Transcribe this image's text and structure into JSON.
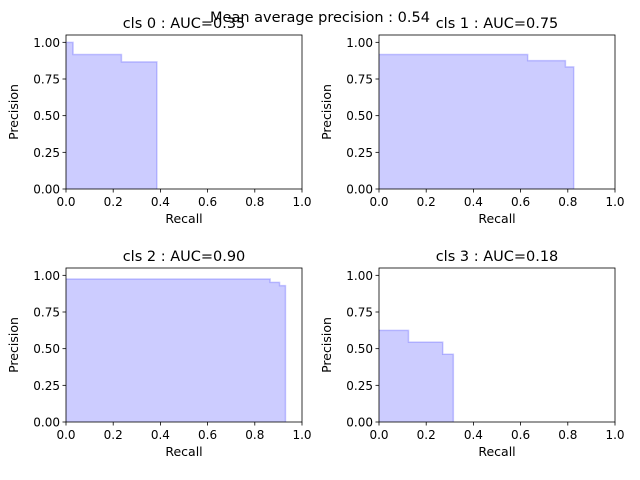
{
  "suptitle": "Mean average precision : 0.54",
  "chart_data": [
    {
      "type": "area",
      "title": "cls 0 : AUC=0.35",
      "xlabel": "Recall",
      "ylabel": "Precision",
      "xlim": [
        0,
        1
      ],
      "ylim": [
        0,
        1.05
      ],
      "xticks": [
        "0.0",
        "0.2",
        "0.4",
        "0.6",
        "0.8",
        "1.0"
      ],
      "yticks": [
        "0.00",
        "0.25",
        "0.50",
        "0.75",
        "1.00"
      ],
      "step_curve": [
        [
          0.0,
          1.0
        ],
        [
          0.03,
          1.0
        ],
        [
          0.03,
          0.917
        ],
        [
          0.235,
          0.917
        ],
        [
          0.235,
          0.867
        ],
        [
          0.385,
          0.867
        ],
        [
          0.385,
          0.0
        ]
      ]
    },
    {
      "type": "area",
      "title": "cls 1 : AUC=0.75",
      "xlabel": "Recall",
      "ylabel": "Precision",
      "xlim": [
        0,
        1
      ],
      "ylim": [
        0,
        1.05
      ],
      "xticks": [
        "0.0",
        "0.2",
        "0.4",
        "0.6",
        "0.8",
        "1.0"
      ],
      "yticks": [
        "0.00",
        "0.25",
        "0.50",
        "0.75",
        "1.00"
      ],
      "step_curve": [
        [
          0.0,
          0.917
        ],
        [
          0.63,
          0.917
        ],
        [
          0.63,
          0.875
        ],
        [
          0.79,
          0.875
        ],
        [
          0.79,
          0.833
        ],
        [
          0.825,
          0.833
        ],
        [
          0.825,
          0.0
        ]
      ]
    },
    {
      "type": "area",
      "title": "cls 2 : AUC=0.90",
      "xlabel": "Recall",
      "ylabel": "Precision",
      "xlim": [
        0,
        1
      ],
      "ylim": [
        0,
        1.05
      ],
      "xticks": [
        "0.0",
        "0.2",
        "0.4",
        "0.6",
        "0.8",
        "1.0"
      ],
      "yticks": [
        "0.00",
        "0.25",
        "0.50",
        "0.75",
        "1.00"
      ],
      "step_curve": [
        [
          0.0,
          0.975
        ],
        [
          0.865,
          0.975
        ],
        [
          0.865,
          0.952
        ],
        [
          0.905,
          0.952
        ],
        [
          0.905,
          0.93
        ],
        [
          0.93,
          0.93
        ],
        [
          0.93,
          0.0
        ]
      ]
    },
    {
      "type": "area",
      "title": "cls 3 : AUC=0.18",
      "xlabel": "Recall",
      "ylabel": "Precision",
      "xlim": [
        0,
        1
      ],
      "ylim": [
        0,
        1.05
      ],
      "xticks": [
        "0.0",
        "0.2",
        "0.4",
        "0.6",
        "0.8",
        "1.0"
      ],
      "yticks": [
        "0.00",
        "0.25",
        "0.50",
        "0.75",
        "1.00"
      ],
      "step_curve": [
        [
          0.0,
          0.625
        ],
        [
          0.125,
          0.625
        ],
        [
          0.125,
          0.545
        ],
        [
          0.27,
          0.545
        ],
        [
          0.27,
          0.462
        ],
        [
          0.315,
          0.462
        ],
        [
          0.315,
          0.0
        ]
      ]
    }
  ],
  "colors": {
    "fill": "#0000ff",
    "fill_opacity": 0.2,
    "line": "#0000ff",
    "line_opacity": 0.2,
    "axis": "#000000"
  }
}
